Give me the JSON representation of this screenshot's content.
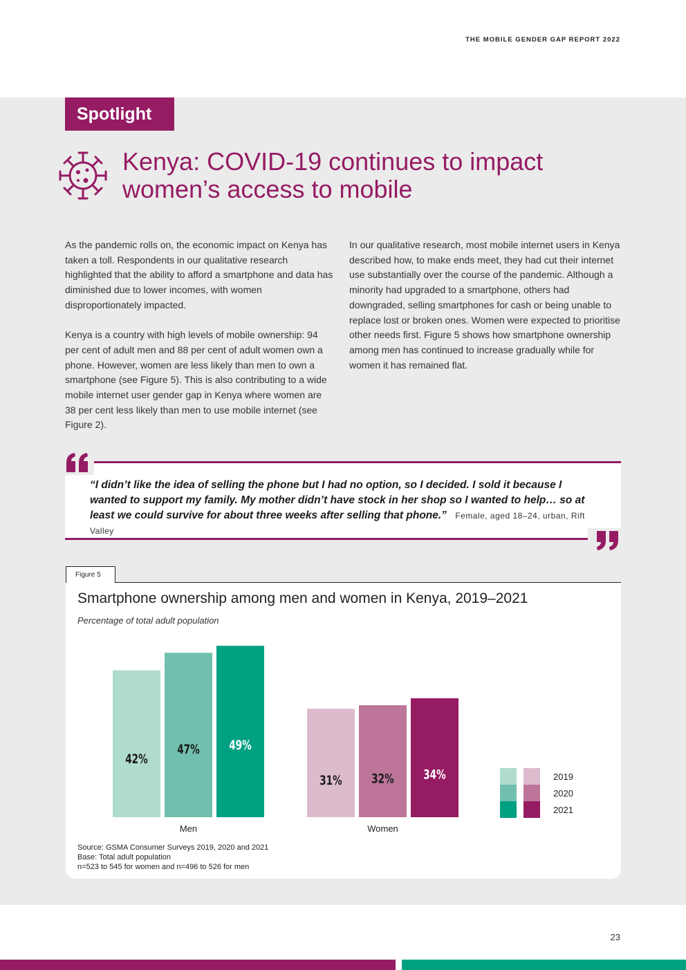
{
  "header": {
    "running_title": "THE MOBILE GENDER GAP REPORT 2022"
  },
  "spotlight": {
    "tag": "Spotlight",
    "icon": "virus-icon"
  },
  "headline": {
    "line1": "Kenya: COVID-19 continues to impact",
    "line2": "women’s access to mobile"
  },
  "body": {
    "left": [
      "As the pandemic rolls on, the economic impact on Kenya has taken a toll. Respondents in our qualitative research highlighted that the ability to afford a smartphone and data has diminished due to lower incomes, with women disproportionately impacted.",
      "Kenya is a country with high levels of mobile ownership: 94 per cent of adult men and 88 per cent of adult women own a phone. However, women are less likely than men to own a smartphone (see Figure 5). This is also contributing to a wide mobile internet user gender gap in Kenya where women are 38 per cent less likely than men to use mobile internet (see Figure 2)."
    ],
    "right": [
      "In our qualitative research, most mobile internet users in Kenya described how, to make ends meet, they had cut their internet use substantially over the course of the pandemic. Although a minority had upgraded to a smartphone, others had downgraded, selling smartphones for cash or being unable to replace lost or broken ones. Women were expected to prioritise other needs first. Figure 5 shows how smartphone ownership among men has continued to increase gradually while for women it has remained flat."
    ]
  },
  "quote": {
    "text": "“I didn’t like the idea of selling the phone but I had no option, so I decided. I sold it because I wanted to support my family. My mother didn’t have stock in her shop so I wanted to help… so at least we could survive for about three weeks after selling that phone.”",
    "attribution": "Female, aged 18–24, urban, Rift Valley"
  },
  "figure": {
    "label": "Figure 5",
    "title": "Smartphone ownership among men and women in Kenya, 2019–2021",
    "subtitle": "Percentage of total adult population",
    "notes": [
      "Source: GSMA Consumer Surveys 2019, 2020 and 2021",
      "Base: Total adult population",
      "n=523 to 545 for women and n=496 to 526 for men"
    ]
  },
  "chart_data": {
    "type": "bar",
    "title": "Smartphone ownership among men and women in Kenya, 2019–2021",
    "ylabel": "Percentage of total adult population",
    "categories": [
      "Men",
      "Women"
    ],
    "series": [
      {
        "name": "2019",
        "values": [
          42,
          31
        ],
        "colors": [
          "#b0dccf",
          "#dcbccc"
        ]
      },
      {
        "name": "2020",
        "values": [
          47,
          32
        ],
        "colors": [
          "#70c0ad",
          "#bd7599"
        ]
      },
      {
        "name": "2021",
        "values": [
          49,
          34
        ],
        "colors": [
          "#00a082",
          "#951b63"
        ]
      }
    ],
    "value_suffix": "%",
    "ylim": [
      0,
      50
    ],
    "legend": "right",
    "grid": false
  },
  "page": {
    "number": "23"
  },
  "colors": {
    "accent": "#951b63",
    "teal": "#00a082",
    "panel": "#ebebeb"
  }
}
